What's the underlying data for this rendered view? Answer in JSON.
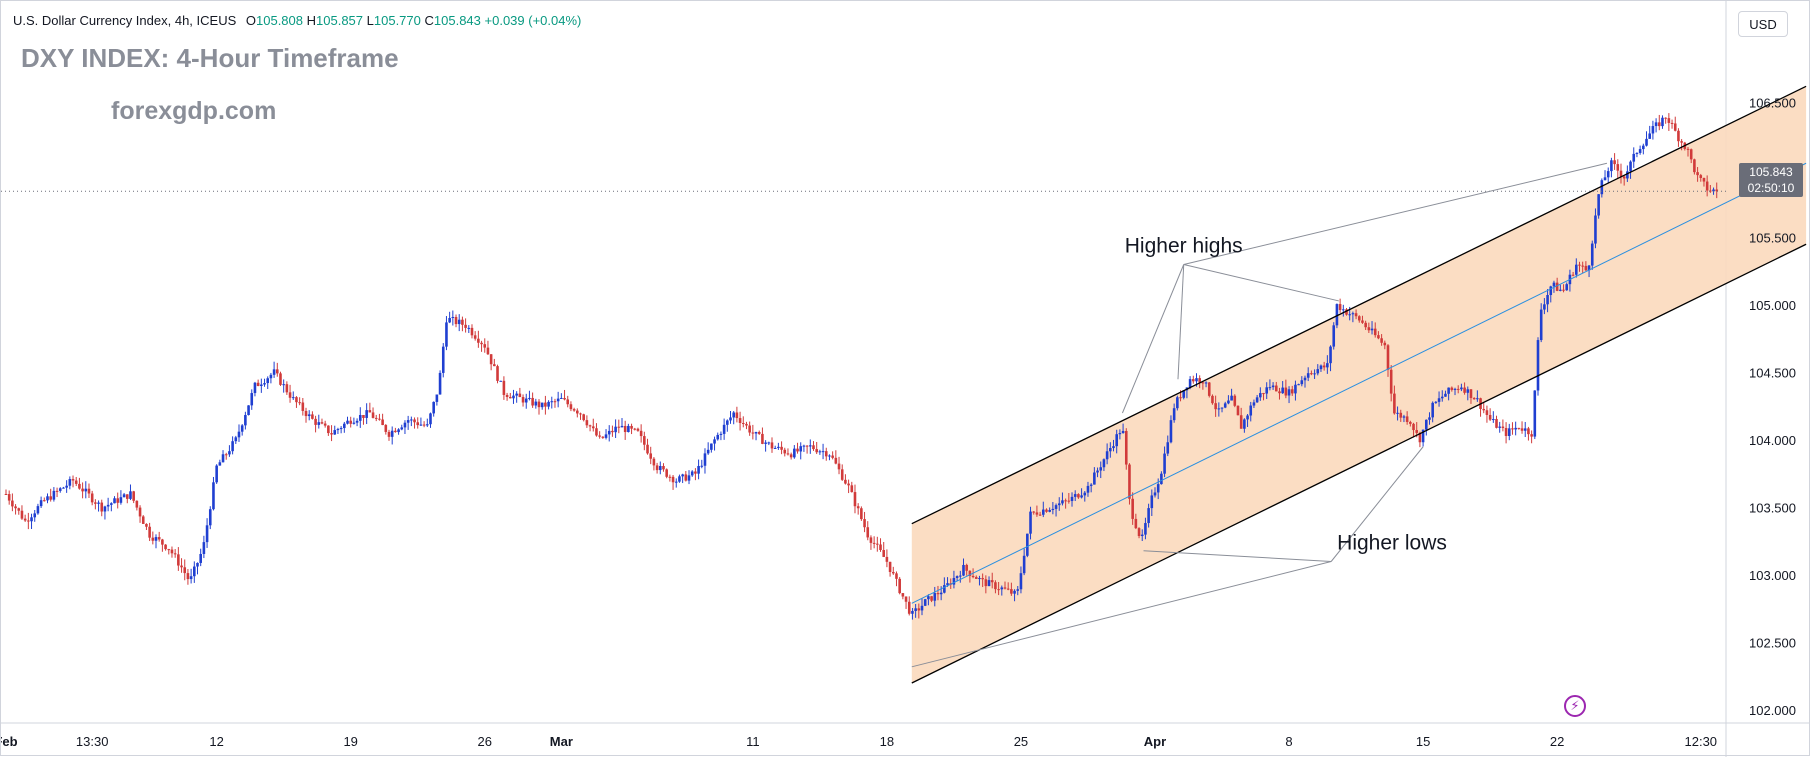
{
  "header": {
    "symbol": "U.S. Dollar Currency Index, 4h, ICEUS",
    "open_label": "O",
    "open": "105.808",
    "high_label": "H",
    "high": "105.857",
    "low_label": "L",
    "low": "105.770",
    "close_label": "C",
    "close": "105.843",
    "change": "+0.039 (+0.04%)"
  },
  "title": "DXY INDEX: 4-Hour Timeframe",
  "watermark": "forexgdp.com",
  "currency": "USD",
  "last_price": {
    "price": "105.843",
    "countdown": "02:50:10"
  },
  "colors": {
    "up": "#1f3fd1",
    "down": "#d13a3a",
    "channel_fill": "#fbd9bd",
    "midline": "#2a8fe0",
    "channel_line": "#000000",
    "badge": "#6a6d78"
  },
  "icons": {
    "replay": "lightning-bolt-icon"
  },
  "chart_data": {
    "type": "candlestick",
    "title": "DXY INDEX: 4-Hour Timeframe",
    "ylim": [
      102.0,
      106.7
    ],
    "y_ticks": [
      "106.500",
      "106.000",
      "105.500",
      "105.000",
      "104.500",
      "104.000",
      "103.500",
      "103.000",
      "102.500",
      "102.000"
    ],
    "x_ticks": [
      "Feb",
      "13:30",
      "12",
      "19",
      "26",
      "Mar",
      "11",
      "18",
      "25",
      "Apr",
      "8",
      "15",
      "22",
      "12:30"
    ],
    "x_tick_days": [
      0,
      4.5,
      11,
      18,
      25,
      29,
      39,
      46,
      53,
      60,
      67,
      74,
      81,
      88.5
    ],
    "price_path": [
      {
        "d": 0,
        "p": 103.6
      },
      {
        "d": 1,
        "p": 103.4
      },
      {
        "d": 2,
        "p": 103.55
      },
      {
        "d": 3.5,
        "p": 103.7
      },
      {
        "d": 5,
        "p": 103.5
      },
      {
        "d": 6.5,
        "p": 103.6
      },
      {
        "d": 7.5,
        "p": 103.3
      },
      {
        "d": 8.5,
        "p": 103.2
      },
      {
        "d": 9.2,
        "p": 103.05
      },
      {
        "d": 9.6,
        "p": 102.95
      },
      {
        "d": 10.3,
        "p": 103.2
      },
      {
        "d": 11,
        "p": 103.8
      },
      {
        "d": 12,
        "p": 104.0
      },
      {
        "d": 13,
        "p": 104.4
      },
      {
        "d": 14,
        "p": 104.5
      },
      {
        "d": 15,
        "p": 104.3
      },
      {
        "d": 16,
        "p": 104.15
      },
      {
        "d": 17,
        "p": 104.05
      },
      {
        "d": 18,
        "p": 104.15
      },
      {
        "d": 19,
        "p": 104.2
      },
      {
        "d": 20,
        "p": 104.05
      },
      {
        "d": 21,
        "p": 104.15
      },
      {
        "d": 22,
        "p": 104.1
      },
      {
        "d": 22.6,
        "p": 104.4
      },
      {
        "d": 23,
        "p": 104.9
      },
      {
        "d": 24,
        "p": 104.85
      },
      {
        "d": 25,
        "p": 104.7
      },
      {
        "d": 26,
        "p": 104.35
      },
      {
        "d": 27,
        "p": 104.3
      },
      {
        "d": 28,
        "p": 104.25
      },
      {
        "d": 29,
        "p": 104.3
      },
      {
        "d": 30,
        "p": 104.2
      },
      {
        "d": 31,
        "p": 104.0
      },
      {
        "d": 32,
        "p": 104.1
      },
      {
        "d": 33,
        "p": 104.05
      },
      {
        "d": 34,
        "p": 103.8
      },
      {
        "d": 35,
        "p": 103.7
      },
      {
        "d": 36,
        "p": 103.75
      },
      {
        "d": 37,
        "p": 104.0
      },
      {
        "d": 38,
        "p": 104.2
      },
      {
        "d": 39,
        "p": 104.05
      },
      {
        "d": 40,
        "p": 103.95
      },
      {
        "d": 41,
        "p": 103.9
      },
      {
        "d": 42,
        "p": 103.95
      },
      {
        "d": 43,
        "p": 103.9
      },
      {
        "d": 44,
        "p": 103.65
      },
      {
        "d": 45,
        "p": 103.3
      },
      {
        "d": 46,
        "p": 103.1
      },
      {
        "d": 46.8,
        "p": 102.85
      },
      {
        "d": 47.3,
        "p": 102.7
      },
      {
        "d": 48,
        "p": 102.8
      },
      {
        "d": 49,
        "p": 102.9
      },
      {
        "d": 50,
        "p": 103.05
      },
      {
        "d": 51,
        "p": 102.95
      },
      {
        "d": 52,
        "p": 102.9
      },
      {
        "d": 52.8,
        "p": 102.85
      },
      {
        "d": 53.5,
        "p": 103.45
      },
      {
        "d": 54.5,
        "p": 103.5
      },
      {
        "d": 55.5,
        "p": 103.55
      },
      {
        "d": 56.5,
        "p": 103.65
      },
      {
        "d": 57.5,
        "p": 103.9
      },
      {
        "d": 58.3,
        "p": 104.1
      },
      {
        "d": 58.7,
        "p": 103.5
      },
      {
        "d": 59.3,
        "p": 103.25
      },
      {
        "d": 59.8,
        "p": 103.55
      },
      {
        "d": 60.3,
        "p": 103.75
      },
      {
        "d": 61,
        "p": 104.25
      },
      {
        "d": 61.8,
        "p": 104.45
      },
      {
        "d": 62.5,
        "p": 104.45
      },
      {
        "d": 63.3,
        "p": 104.2
      },
      {
        "d": 64,
        "p": 104.3
      },
      {
        "d": 64.5,
        "p": 104.1
      },
      {
        "d": 65.2,
        "p": 104.3
      },
      {
        "d": 66,
        "p": 104.4
      },
      {
        "d": 67,
        "p": 104.35
      },
      {
        "d": 68,
        "p": 104.5
      },
      {
        "d": 69,
        "p": 104.55
      },
      {
        "d": 69.5,
        "p": 105.0
      },
      {
        "d": 70,
        "p": 104.95
      },
      {
        "d": 70.6,
        "p": 104.9
      },
      {
        "d": 71.3,
        "p": 104.8
      },
      {
        "d": 72,
        "p": 104.7
      },
      {
        "d": 72.5,
        "p": 104.2
      },
      {
        "d": 73.3,
        "p": 104.15
      },
      {
        "d": 73.8,
        "p": 104.0
      },
      {
        "d": 74.5,
        "p": 104.25
      },
      {
        "d": 75.2,
        "p": 104.35
      },
      {
        "d": 76,
        "p": 104.4
      },
      {
        "d": 76.8,
        "p": 104.3
      },
      {
        "d": 77.5,
        "p": 104.15
      },
      {
        "d": 78.3,
        "p": 104.05
      },
      {
        "d": 79,
        "p": 104.1
      },
      {
        "d": 79.7,
        "p": 104.05
      },
      {
        "d": 80.1,
        "p": 104.95
      },
      {
        "d": 80.7,
        "p": 105.15
      },
      {
        "d": 81.3,
        "p": 105.1
      },
      {
        "d": 82,
        "p": 105.3
      },
      {
        "d": 82.6,
        "p": 105.25
      },
      {
        "d": 83.2,
        "p": 105.85
      },
      {
        "d": 83.8,
        "p": 106.05
      },
      {
        "d": 84.5,
        "p": 105.95
      },
      {
        "d": 85.2,
        "p": 106.15
      },
      {
        "d": 86,
        "p": 106.3
      },
      {
        "d": 86.7,
        "p": 106.4
      },
      {
        "d": 87.3,
        "p": 106.25
      },
      {
        "d": 87.8,
        "p": 106.15
      },
      {
        "d": 88.3,
        "p": 105.95
      },
      {
        "d": 88.9,
        "p": 105.85
      },
      {
        "d": 89.4,
        "p": 105.843
      }
    ],
    "channel": {
      "upper": [
        [
          47.3,
          103.38
        ],
        [
          94.0,
          106.62
        ]
      ],
      "lower": [
        [
          47.3,
          102.2
        ],
        [
          94.0,
          105.45
        ]
      ],
      "mid": [
        [
          47.3,
          102.79
        ],
        [
          94.0,
          106.05
        ]
      ]
    },
    "last_price": 105.843,
    "annotations": [
      {
        "text": "Higher highs",
        "anchor": [
          61.5,
          105.3
        ],
        "targets": [
          [
            58.3,
            104.2
          ],
          [
            61.2,
            104.45
          ],
          [
            69.6,
            105.03
          ],
          [
            83.6,
            106.05
          ]
        ],
        "text_anchor": "middle"
      },
      {
        "text": "Higher lows",
        "anchor": [
          69.2,
          103.1
        ],
        "targets": [
          [
            47.3,
            102.32
          ],
          [
            59.4,
            103.18
          ],
          [
            74.0,
            103.95
          ]
        ],
        "text_anchor": "start"
      }
    ]
  }
}
